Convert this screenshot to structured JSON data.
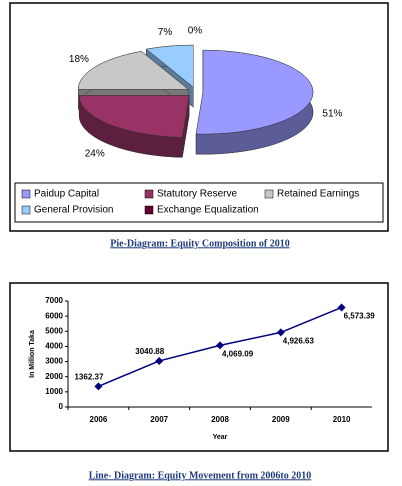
{
  "chart_data": [
    {
      "type": "pie",
      "categories": [
        "Paidup Capital",
        "Statutory Reserve",
        "Retained Earnings",
        "General Provision",
        "Exchange Equalization"
      ],
      "values": [
        51,
        24,
        18,
        7,
        0
      ],
      "value_labels": [
        "51%",
        "24%",
        "18%",
        "7%",
        "0%"
      ],
      "colors": [
        "#9999ff",
        "#993366",
        "#c8c8c8",
        "#99ccff",
        "#660033"
      ],
      "caption": "Pie-Diagram: Equity Composition of 2010"
    },
    {
      "type": "line",
      "categories": [
        "2006",
        "2007",
        "2008",
        "2009",
        "2010"
      ],
      "values": [
        1362.37,
        3040.88,
        4069.09,
        4926.63,
        6573.39
      ],
      "value_labels": [
        "1362.37",
        "3040.88",
        "4,069.09",
        "4,926.63",
        "6,573.39"
      ],
      "color": "#000080",
      "ylim": [
        0,
        7000
      ],
      "yticks": [
        0,
        1000,
        2000,
        3000,
        4000,
        5000,
        6000,
        7000
      ],
      "xlabel": "Year",
      "ylabel": "In Million Taka",
      "caption": "Line- Diagram: Equity Movement from 2006to 2010"
    }
  ]
}
